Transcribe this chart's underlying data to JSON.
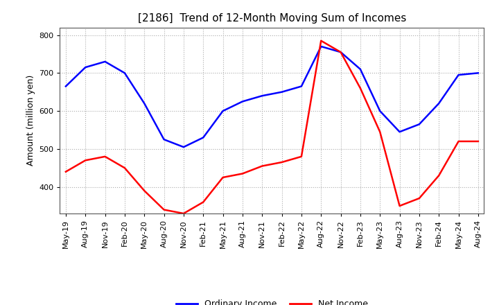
{
  "title": "[2186]  Trend of 12-Month Moving Sum of Incomes",
  "ylabel": "Amount (million yen)",
  "ylim": [
    330,
    820
  ],
  "yticks": [
    400,
    500,
    600,
    700,
    800
  ],
  "background_color": "#ffffff",
  "grid_color": "#aaaaaa",
  "ordinary_income_color": "#0000ff",
  "net_income_color": "#ff0000",
  "x_labels": [
    "May-19",
    "Aug-19",
    "Nov-19",
    "Feb-20",
    "May-20",
    "Aug-20",
    "Nov-20",
    "Feb-21",
    "May-21",
    "Aug-21",
    "Nov-21",
    "Feb-22",
    "May-22",
    "Aug-22",
    "Nov-22",
    "Feb-23",
    "May-23",
    "Aug-23",
    "Nov-23",
    "Feb-24",
    "May-24",
    "Aug-24"
  ],
  "ordinary_income": [
    665,
    715,
    730,
    700,
    620,
    525,
    505,
    530,
    600,
    625,
    640,
    650,
    665,
    770,
    755,
    710,
    600,
    545,
    565,
    620,
    695,
    700
  ],
  "net_income": [
    440,
    470,
    480,
    450,
    390,
    340,
    330,
    360,
    425,
    435,
    455,
    465,
    480,
    785,
    755,
    660,
    545,
    350,
    370,
    430,
    520,
    520
  ],
  "legend_labels": [
    "Ordinary Income",
    "Net Income"
  ],
  "linewidth": 1.8,
  "title_fontsize": 11,
  "axis_label_fontsize": 9,
  "tick_fontsize": 8,
  "legend_fontsize": 9
}
